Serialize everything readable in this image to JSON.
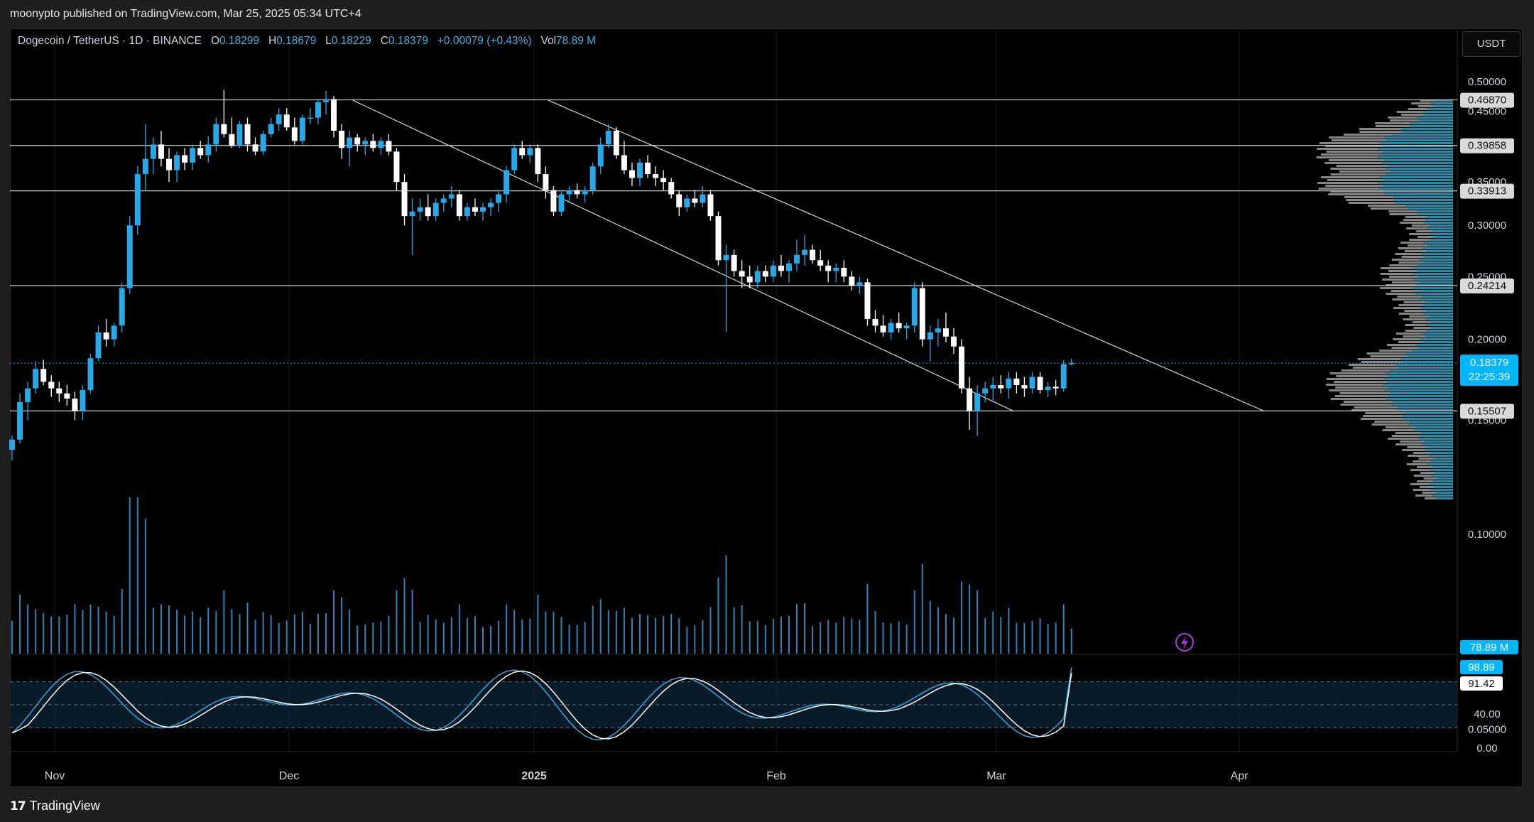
{
  "header": {
    "publisher": "moonypto published on TradingView.com, Mar 25, 2025 05:34 UTC+4"
  },
  "legend": {
    "symbol": "Dogecoin / TetherUS · 1D · BINANCE",
    "open_label": "O",
    "open": "0.18299",
    "high_label": "H",
    "high": "0.18679",
    "low_label": "L",
    "low": "0.18229",
    "close_label": "C",
    "close": "0.18379",
    "change": "+0.00079 (+0.43%)",
    "vol_label": "Vol",
    "vol": "78.89 M"
  },
  "currency_button": "USDT",
  "footer": {
    "brand": "TradingView",
    "brand_mark": "17"
  },
  "colors": {
    "up": "#2aa8e6",
    "down": "#ffffff",
    "accent": "#00b7ff",
    "stoch_k": "#3aa6dd",
    "stoch_d": "#ffffff"
  },
  "icons": {
    "alert": "lightning-icon"
  },
  "chart_data": {
    "type": "candlestick",
    "price_axis": {
      "scale": "log",
      "ticks": [
        "0.50000",
        "0.45000",
        "0.40000",
        "0.35000",
        "0.30000",
        "0.25000",
        "0.20000",
        "0.15000",
        "0.10000",
        "0.05000"
      ]
    },
    "time_axis": {
      "ticks": [
        "Nov",
        "Dec",
        "2025",
        "Feb",
        "Mar",
        "Apr"
      ]
    },
    "horizontal_levels": [
      {
        "value": 0.4687,
        "label": "0.46870"
      },
      {
        "value": 0.39858,
        "label": "0.39858"
      },
      {
        "value": 0.33913,
        "label": "0.33913"
      },
      {
        "value": 0.24214,
        "label": "0.24214"
      },
      {
        "value": 0.15507,
        "label": "0.15507"
      }
    ],
    "last_price": {
      "value": 0.18379,
      "label": "0.18379",
      "countdown": "22:25:39"
    },
    "volume_label": "78.89 M",
    "stoch_rsi": {
      "k": "98.89",
      "d": "91.42",
      "levels": [
        "40.00",
        "0.00"
      ]
    },
    "ohlc": [
      [
        0.135,
        0.142,
        0.13,
        0.14
      ],
      [
        0.14,
        0.165,
        0.138,
        0.16
      ],
      [
        0.16,
        0.172,
        0.15,
        0.168
      ],
      [
        0.168,
        0.185,
        0.165,
        0.18
      ],
      [
        0.18,
        0.186,
        0.17,
        0.172
      ],
      [
        0.172,
        0.176,
        0.163,
        0.168
      ],
      [
        0.168,
        0.172,
        0.16,
        0.165
      ],
      [
        0.165,
        0.17,
        0.158,
        0.162
      ],
      [
        0.162,
        0.166,
        0.15,
        0.155
      ],
      [
        0.155,
        0.17,
        0.15,
        0.167
      ],
      [
        0.167,
        0.19,
        0.165,
        0.187
      ],
      [
        0.187,
        0.21,
        0.185,
        0.205
      ],
      [
        0.205,
        0.215,
        0.195,
        0.2
      ],
      [
        0.2,
        0.212,
        0.195,
        0.21
      ],
      [
        0.21,
        0.245,
        0.205,
        0.24
      ],
      [
        0.24,
        0.31,
        0.235,
        0.3
      ],
      [
        0.3,
        0.37,
        0.29,
        0.36
      ],
      [
        0.36,
        0.43,
        0.34,
        0.38
      ],
      [
        0.38,
        0.41,
        0.36,
        0.4
      ],
      [
        0.4,
        0.42,
        0.37,
        0.38
      ],
      [
        0.38,
        0.395,
        0.35,
        0.365
      ],
      [
        0.365,
        0.39,
        0.35,
        0.385
      ],
      [
        0.385,
        0.395,
        0.365,
        0.375
      ],
      [
        0.375,
        0.4,
        0.365,
        0.395
      ],
      [
        0.395,
        0.405,
        0.38,
        0.385
      ],
      [
        0.385,
        0.412,
        0.375,
        0.4
      ],
      [
        0.4,
        0.44,
        0.39,
        0.43
      ],
      [
        0.43,
        0.485,
        0.41,
        0.415
      ],
      [
        0.415,
        0.44,
        0.395,
        0.398
      ],
      [
        0.398,
        0.435,
        0.395,
        0.43
      ],
      [
        0.43,
        0.44,
        0.39,
        0.4
      ],
      [
        0.4,
        0.41,
        0.385,
        0.39
      ],
      [
        0.39,
        0.42,
        0.385,
        0.415
      ],
      [
        0.415,
        0.44,
        0.41,
        0.43
      ],
      [
        0.43,
        0.455,
        0.42,
        0.445
      ],
      [
        0.445,
        0.455,
        0.42,
        0.425
      ],
      [
        0.425,
        0.44,
        0.4,
        0.405
      ],
      [
        0.405,
        0.445,
        0.4,
        0.44
      ],
      [
        0.44,
        0.455,
        0.43,
        0.44
      ],
      [
        0.44,
        0.47,
        0.43,
        0.465
      ],
      [
        0.465,
        0.484,
        0.445,
        0.47
      ],
      [
        0.47,
        0.475,
        0.41,
        0.42
      ],
      [
        0.42,
        0.43,
        0.38,
        0.395
      ],
      [
        0.395,
        0.42,
        0.37,
        0.41
      ],
      [
        0.41,
        0.415,
        0.39,
        0.4
      ],
      [
        0.4,
        0.41,
        0.385,
        0.405
      ],
      [
        0.405,
        0.415,
        0.39,
        0.395
      ],
      [
        0.395,
        0.41,
        0.385,
        0.405
      ],
      [
        0.405,
        0.415,
        0.385,
        0.39
      ],
      [
        0.39,
        0.395,
        0.34,
        0.35
      ],
      [
        0.35,
        0.36,
        0.3,
        0.31
      ],
      [
        0.31,
        0.33,
        0.27,
        0.315
      ],
      [
        0.315,
        0.33,
        0.305,
        0.32
      ],
      [
        0.32,
        0.335,
        0.305,
        0.31
      ],
      [
        0.31,
        0.33,
        0.305,
        0.325
      ],
      [
        0.325,
        0.335,
        0.315,
        0.33
      ],
      [
        0.33,
        0.345,
        0.32,
        0.335
      ],
      [
        0.335,
        0.34,
        0.305,
        0.31
      ],
      [
        0.31,
        0.325,
        0.305,
        0.32
      ],
      [
        0.32,
        0.33,
        0.31,
        0.315
      ],
      [
        0.315,
        0.325,
        0.305,
        0.32
      ],
      [
        0.32,
        0.33,
        0.31,
        0.325
      ],
      [
        0.325,
        0.34,
        0.315,
        0.335
      ],
      [
        0.335,
        0.37,
        0.325,
        0.365
      ],
      [
        0.365,
        0.4,
        0.36,
        0.395
      ],
      [
        0.395,
        0.405,
        0.38,
        0.385
      ],
      [
        0.385,
        0.4,
        0.375,
        0.395
      ],
      [
        0.395,
        0.4,
        0.35,
        0.36
      ],
      [
        0.36,
        0.37,
        0.33,
        0.34
      ],
      [
        0.34,
        0.345,
        0.31,
        0.315
      ],
      [
        0.315,
        0.34,
        0.31,
        0.335
      ],
      [
        0.335,
        0.345,
        0.325,
        0.34
      ],
      [
        0.34,
        0.348,
        0.33,
        0.335
      ],
      [
        0.335,
        0.345,
        0.325,
        0.34
      ],
      [
        0.34,
        0.375,
        0.335,
        0.37
      ],
      [
        0.37,
        0.41,
        0.36,
        0.4
      ],
      [
        0.4,
        0.43,
        0.395,
        0.42
      ],
      [
        0.42,
        0.425,
        0.38,
        0.385
      ],
      [
        0.385,
        0.405,
        0.36,
        0.365
      ],
      [
        0.365,
        0.375,
        0.345,
        0.355
      ],
      [
        0.355,
        0.38,
        0.345,
        0.375
      ],
      [
        0.375,
        0.385,
        0.355,
        0.36
      ],
      [
        0.36,
        0.37,
        0.345,
        0.355
      ],
      [
        0.355,
        0.365,
        0.34,
        0.35
      ],
      [
        0.35,
        0.355,
        0.33,
        0.335
      ],
      [
        0.335,
        0.34,
        0.31,
        0.32
      ],
      [
        0.32,
        0.335,
        0.315,
        0.33
      ],
      [
        0.33,
        0.34,
        0.32,
        0.325
      ],
      [
        0.325,
        0.345,
        0.32,
        0.335
      ],
      [
        0.335,
        0.34,
        0.305,
        0.31
      ],
      [
        0.31,
        0.315,
        0.26,
        0.265
      ],
      [
        0.265,
        0.28,
        0.205,
        0.27
      ],
      [
        0.27,
        0.275,
        0.25,
        0.255
      ],
      [
        0.255,
        0.265,
        0.24,
        0.25
      ],
      [
        0.25,
        0.26,
        0.24,
        0.245
      ],
      [
        0.245,
        0.26,
        0.24,
        0.255
      ],
      [
        0.255,
        0.26,
        0.245,
        0.25
      ],
      [
        0.25,
        0.265,
        0.245,
        0.26
      ],
      [
        0.26,
        0.27,
        0.25,
        0.255
      ],
      [
        0.255,
        0.265,
        0.245,
        0.262
      ],
      [
        0.262,
        0.285,
        0.255,
        0.27
      ],
      [
        0.27,
        0.29,
        0.26,
        0.275
      ],
      [
        0.275,
        0.28,
        0.262,
        0.265
      ],
      [
        0.265,
        0.275,
        0.255,
        0.26
      ],
      [
        0.26,
        0.265,
        0.245,
        0.255
      ],
      [
        0.255,
        0.262,
        0.245,
        0.258
      ],
      [
        0.258,
        0.265,
        0.245,
        0.25
      ],
      [
        0.25,
        0.255,
        0.238,
        0.242
      ],
      [
        0.242,
        0.25,
        0.235,
        0.245
      ],
      [
        0.245,
        0.248,
        0.21,
        0.215
      ],
      [
        0.215,
        0.222,
        0.205,
        0.21
      ],
      [
        0.21,
        0.218,
        0.202,
        0.205
      ],
      [
        0.205,
        0.215,
        0.2,
        0.212
      ],
      [
        0.212,
        0.22,
        0.205,
        0.208
      ],
      [
        0.208,
        0.212,
        0.2,
        0.21
      ],
      [
        0.21,
        0.245,
        0.205,
        0.24
      ],
      [
        0.24,
        0.245,
        0.195,
        0.2
      ],
      [
        0.2,
        0.21,
        0.185,
        0.205
      ],
      [
        0.205,
        0.215,
        0.195,
        0.208
      ],
      [
        0.208,
        0.22,
        0.198,
        0.202
      ],
      [
        0.202,
        0.208,
        0.19,
        0.195
      ],
      [
        0.195,
        0.2,
        0.165,
        0.168
      ],
      [
        0.168,
        0.175,
        0.145,
        0.155
      ],
      [
        0.155,
        0.17,
        0.142,
        0.165
      ],
      [
        0.165,
        0.172,
        0.16,
        0.168
      ],
      [
        0.168,
        0.175,
        0.16,
        0.17
      ],
      [
        0.17,
        0.176,
        0.165,
        0.168
      ],
      [
        0.168,
        0.178,
        0.162,
        0.174
      ],
      [
        0.174,
        0.178,
        0.165,
        0.17
      ],
      [
        0.17,
        0.175,
        0.163,
        0.168
      ],
      [
        0.168,
        0.178,
        0.165,
        0.175
      ],
      [
        0.175,
        0.178,
        0.165,
        0.167
      ],
      [
        0.167,
        0.172,
        0.163,
        0.169
      ],
      [
        0.169,
        0.173,
        0.164,
        0.168
      ],
      [
        0.168,
        0.186,
        0.166,
        0.183
      ],
      [
        0.18299,
        0.18679,
        0.18229,
        0.18379
      ]
    ]
  }
}
